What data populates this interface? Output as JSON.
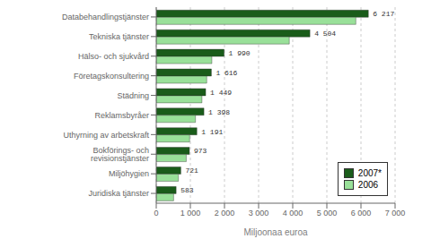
{
  "chart_data": {
    "type": "bar",
    "orientation": "horizontal",
    "categories": [
      "Databehandlingstjänster",
      "Tekniska tjänster",
      "Hälso- och sjukvård",
      "Företagskonsultering",
      "Städning",
      "Reklamsbyråer",
      "Uthyrning av arbetskraft",
      "Bokförings- och revisionstjänster",
      "Miljöhygien",
      "Juridiska tjänster"
    ],
    "series": [
      {
        "name": "2007*",
        "color": "#1a5c1a",
        "values": [
          6217,
          4504,
          1990,
          1616,
          1449,
          1398,
          1191,
          973,
          721,
          583
        ],
        "value_labels": [
          "6 217",
          "4 504",
          "1 990",
          "1 616",
          "1 449",
          "1 398",
          "1 191",
          "973",
          "721",
          "583"
        ]
      },
      {
        "name": "2006",
        "color": "#99e099",
        "values": [
          5850,
          3900,
          1630,
          1480,
          1340,
          1150,
          980,
          880,
          650,
          510
        ]
      }
    ],
    "xlabel": "Miljoonaa  euroa",
    "xlim": [
      0,
      7000
    ],
    "xticks": [
      0,
      {
        "value": 1000,
        "label": "1 000"
      },
      {
        "value": 2000,
        "label": "2 000"
      },
      {
        "value": 3000,
        "label": "3 000"
      },
      {
        "value": 4000,
        "label": "4 000"
      },
      {
        "value": 5000,
        "label": "5 000"
      },
      {
        "value": 6000,
        "label": "6 000"
      },
      {
        "value": 7000,
        "label": "7 000"
      }
    ],
    "grid": true,
    "legend": "lower right"
  }
}
